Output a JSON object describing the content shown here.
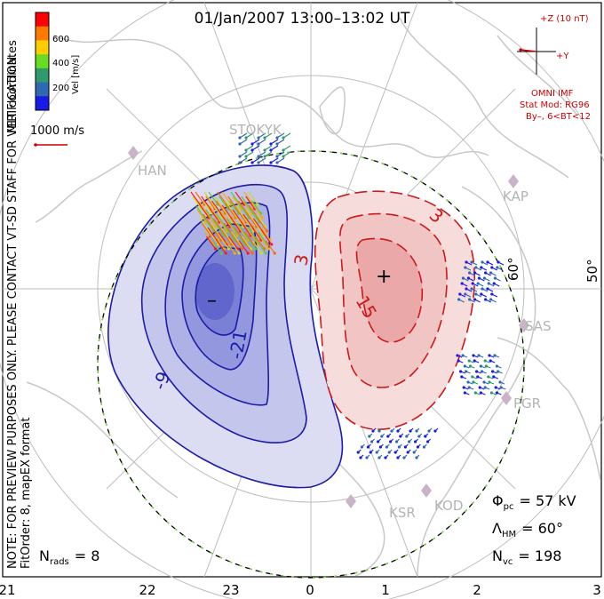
{
  "title": "01/Jan/2007 13:00–13:02 UT",
  "colorbar": {
    "label": "Vel [m/s]",
    "ticks": [
      "600",
      "400",
      "200"
    ],
    "colors": [
      "#ff0000",
      "#ff7a00",
      "#ffcc00",
      "#66dd22",
      "#2e9a6e",
      "#2f6ab0",
      "#1a1ae6"
    ]
  },
  "vector_scale": {
    "label": "1000 m/s"
  },
  "coordinates_label": "MLT coordinates",
  "imf": {
    "z_label": "+Z (10 nT)",
    "y_label": "+Y",
    "source": "OMNI IMF",
    "stat_mod": "Stat Mod: RG96",
    "condition": "By–, 6<BT<12",
    "color": "#cc0000"
  },
  "latitude_labels": [
    "60°",
    "50°"
  ],
  "stations": [
    "STOKYK",
    "HAN",
    "KAP",
    "SAS",
    "PGR",
    "KOD",
    "KSR"
  ],
  "contours": {
    "negative_labels": [
      "-9",
      "-21"
    ],
    "positive_labels": [
      "3",
      "3",
      "15"
    ],
    "negative_marker": "–",
    "positive_marker": "+"
  },
  "notices": {
    "preview": "NOTE: FOR PREVIEW PURPOSES ONLY. PLEASE CONTACT VT-SD STAFF FOR VERIFICATION.",
    "fit": "FitOrder: 8, mapEX format"
  },
  "stats": {
    "phi_label": "Φ",
    "phi_sub": "pc",
    "phi_value": "= 57 kV",
    "lambda_label": "Λ",
    "lambda_sub": "HM",
    "lambda_value": "= 60°",
    "nvc_label": "N",
    "nvc_sub": "vc",
    "nvc_value": "= 198",
    "nrads_label": "N",
    "nrads_sub": "rads",
    "nrads_value": "= 8"
  },
  "mlt_axis": [
    "21",
    "22",
    "23",
    "0",
    "1",
    "2",
    "3"
  ]
}
